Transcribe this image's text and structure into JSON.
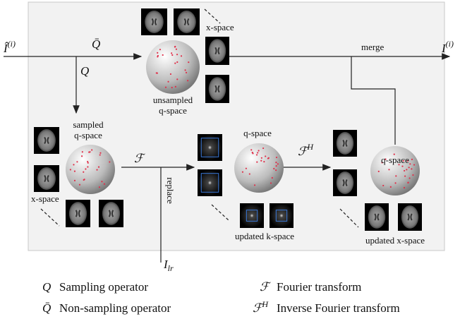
{
  "input": {
    "base": "Î",
    "sup": "(i)"
  },
  "output": {
    "base": "I",
    "sup": "(i)"
  },
  "edges": {
    "non_sampling": "Q̄",
    "sampling": "Q",
    "fourier": "ℱ",
    "inverse": {
      "base": "ℱ",
      "sup": "H"
    },
    "merge": "merge",
    "replace": "replace",
    "lr": {
      "base": "I",
      "sub": "lr"
    }
  },
  "regions": {
    "top_x_space": "x-space",
    "unsampled": [
      "unsampled",
      "q-space"
    ],
    "sampled": [
      "sampled",
      "q-space"
    ],
    "left_x_space": "x-space",
    "mid_q_space": "q-space",
    "updated_k": "updated k-space",
    "right_q_space": "q-space",
    "updated_x": "updated x-space"
  },
  "legend": [
    {
      "symbol": "Q",
      "text": "Sampling operator"
    },
    {
      "symbol": "Q̄",
      "text": "Non-sampling operator"
    },
    {
      "symbol": "ℱ",
      "text": "Fourier transform"
    },
    {
      "symbol": "ℱ",
      "sup": "H",
      "text": "Inverse Fourier transform"
    }
  ]
}
